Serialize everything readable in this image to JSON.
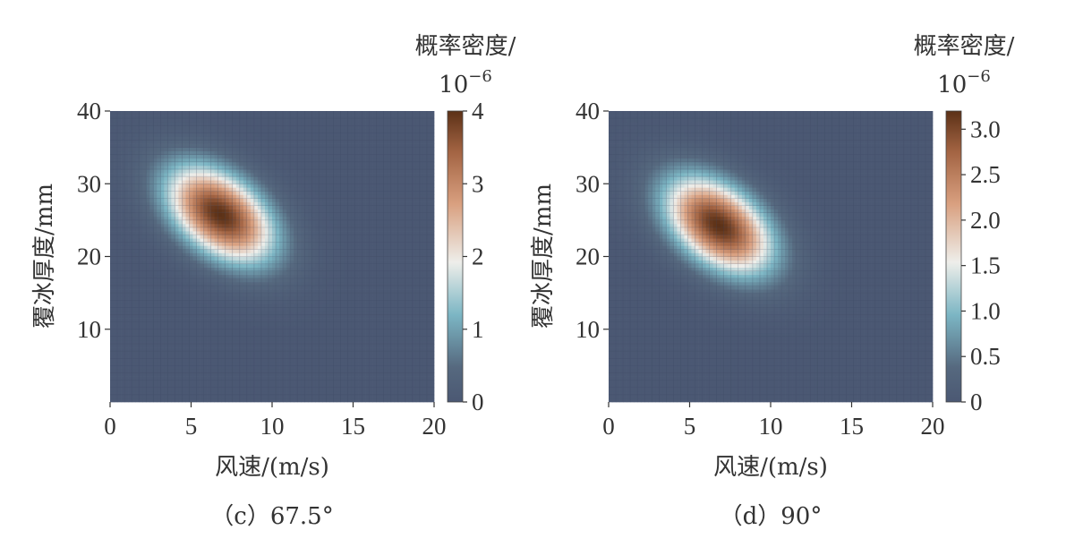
{
  "chart_data": [
    {
      "panel": "c",
      "type": "heatmap",
      "caption": "（c）67.5°",
      "xlabel": "风速/(m/s)",
      "ylabel": "覆冰厚度/mm",
      "xlim": [
        0,
        20
      ],
      "ylim": [
        0,
        40
      ],
      "x_ticks": [
        0,
        5,
        10,
        15,
        20
      ],
      "y_ticks": [
        10,
        20,
        30,
        40
      ],
      "colorbar": {
        "title": "概率密度/",
        "scale_base": "10",
        "scale_exp": "−6",
        "range": [
          0,
          4
        ],
        "ticks": [
          {
            "value": 0,
            "label": "0"
          },
          {
            "value": 1,
            "label": "1"
          },
          {
            "value": 2,
            "label": "2"
          },
          {
            "value": 3,
            "label": "3"
          },
          {
            "value": 4,
            "label": "4"
          }
        ]
      },
      "peak": {
        "x": 6.8,
        "y": 25.8,
        "value": 4.0
      },
      "spread": {
        "sx": 2.3,
        "sy": 4.6,
        "rho": -0.45
      },
      "colors": [
        "#4b5873",
        "#56697f",
        "#7cb6c4",
        "#eeeeea",
        "#d9a080",
        "#a36443",
        "#5c3117"
      ]
    },
    {
      "panel": "d",
      "type": "heatmap",
      "caption": "（d）90°",
      "xlabel": "风速/(m/s)",
      "ylabel": "覆冰厚度/mm",
      "xlim": [
        0,
        20
      ],
      "ylim": [
        0,
        40
      ],
      "x_ticks": [
        0,
        5,
        10,
        15,
        20
      ],
      "y_ticks": [
        10,
        20,
        30,
        40
      ],
      "colorbar": {
        "title": "概率密度/",
        "scale_base": "10",
        "scale_exp": "−6",
        "range": [
          0,
          3.2
        ],
        "ticks": [
          {
            "value": 0,
            "label": "0"
          },
          {
            "value": 0.5,
            "label": "0.5"
          },
          {
            "value": 1.0,
            "label": "1.0"
          },
          {
            "value": 1.5,
            "label": "1.5"
          },
          {
            "value": 2.0,
            "label": "2.0"
          },
          {
            "value": 2.5,
            "label": "2.5"
          },
          {
            "value": 3.0,
            "label": "3.0"
          }
        ]
      },
      "peak": {
        "x": 6.8,
        "y": 24.3,
        "value": 3.2
      },
      "spread": {
        "sx": 2.3,
        "sy": 4.6,
        "rho": -0.45
      },
      "colors": [
        "#4b5873",
        "#56697f",
        "#7cb6c4",
        "#eeeeea",
        "#d9a080",
        "#a36443",
        "#5c3117"
      ]
    }
  ]
}
